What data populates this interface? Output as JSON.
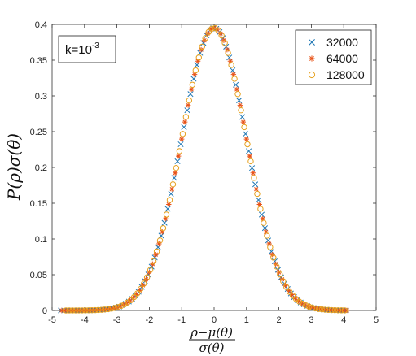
{
  "chart_data": {
    "type": "scatter",
    "xlabel_num": "ρ−μ(θ)",
    "xlabel_den": "σ(θ)",
    "ylabel": "P(ρ)σ(θ)",
    "xlim": [
      -5,
      5
    ],
    "ylim": [
      0,
      0.4
    ],
    "x_ticks": [
      "-5",
      "-4",
      "-3",
      "-2",
      "-1",
      "0",
      "1",
      "2",
      "3",
      "4",
      "5"
    ],
    "y_ticks": [
      "0",
      "0.05",
      "0.1",
      "0.15",
      "0.2",
      "0.25",
      "0.3",
      "0.35",
      "0.4"
    ],
    "grid": false,
    "legend_position": "top-right",
    "annotation": {
      "base": "k=10",
      "exponent": "-3",
      "position": "top-left"
    },
    "distribution": {
      "mean": 0,
      "std": 1,
      "peak": 0.395,
      "x_min": -4.7,
      "x_max": 4.1
    },
    "series": [
      {
        "name": "32000",
        "marker": "x",
        "color": "#1f77b4",
        "step": 0.1,
        "x_min": -4.7,
        "x_max": 4.1
      },
      {
        "name": "64000",
        "marker": "asterisk",
        "color": "#e8541a",
        "step": 0.1,
        "x_min": -4.7,
        "x_max": 4.1
      },
      {
        "name": "128000",
        "marker": "circle",
        "color": "#e6a11e",
        "step": 0.1,
        "x_min": -4.6,
        "x_max": 4.0
      }
    ]
  }
}
